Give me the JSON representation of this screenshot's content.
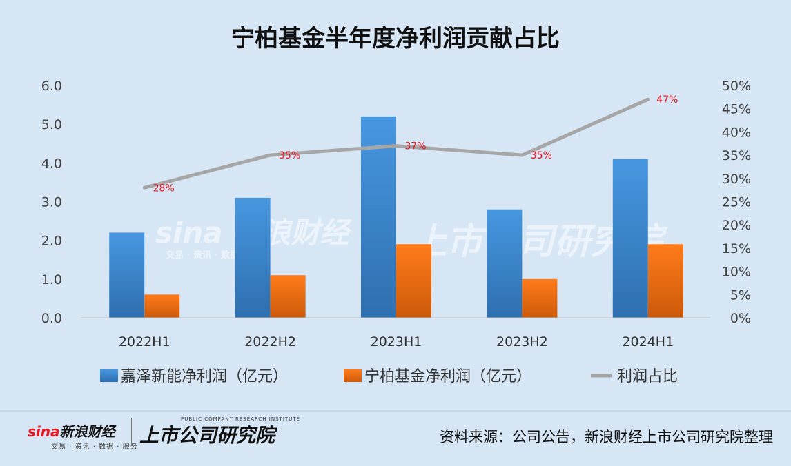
{
  "page": {
    "title": "宁柏基金半年度净利润贡献占比",
    "source": "资料来源：公司公告，新浪财经上市公司研究院整理"
  },
  "logos": {
    "sina_brand": "新浪财经",
    "sina_brand_prefix": "sina",
    "sina_sub": "交易 · 资讯 · 数据 · 服务",
    "institute_small": "PUBLIC COMPANY RESEARCH INSTITUTE",
    "institute_name": "上市公司研究院"
  },
  "watermark": {
    "sina_text": "sina 新浪财经",
    "sub_text": "交易 · 资讯 · 数据 · 服务",
    "institute": "上市公司研究院"
  },
  "chart_data": {
    "type": "bar",
    "title": "宁柏基金半年度净利润贡献占比",
    "categories": [
      "2022H1",
      "2022H2",
      "2023H1",
      "2023H2",
      "2024H1"
    ],
    "series": [
      {
        "name": "嘉泽新能净利润（亿元）",
        "type": "bar",
        "axis": "left",
        "color": "#3a88d4",
        "values": [
          2.2,
          3.1,
          5.2,
          2.8,
          4.1
        ]
      },
      {
        "name": "宁柏基金净利润（亿元）",
        "type": "bar",
        "axis": "left",
        "color": "#f07010",
        "values": [
          0.6,
          1.1,
          1.9,
          1.0,
          1.9
        ]
      },
      {
        "name": "利润占比",
        "type": "line",
        "axis": "right",
        "color": "#a6a6a6",
        "values": [
          28,
          35,
          37,
          35,
          47
        ],
        "labels": [
          "28%",
          "35%",
          "37%",
          "35%",
          "47%"
        ]
      }
    ],
    "y_left": {
      "ylim": [
        0,
        6
      ],
      "ticks": [
        "0.0",
        "1.0",
        "2.0",
        "3.0",
        "4.0",
        "5.0",
        "6.0"
      ]
    },
    "y_right": {
      "ylim": [
        0,
        50
      ],
      "ticks": [
        "0%",
        "5%",
        "10%",
        "15%",
        "20%",
        "25%",
        "30%",
        "35%",
        "40%",
        "45%",
        "50%"
      ]
    },
    "grid": false,
    "legend": "bottom"
  }
}
